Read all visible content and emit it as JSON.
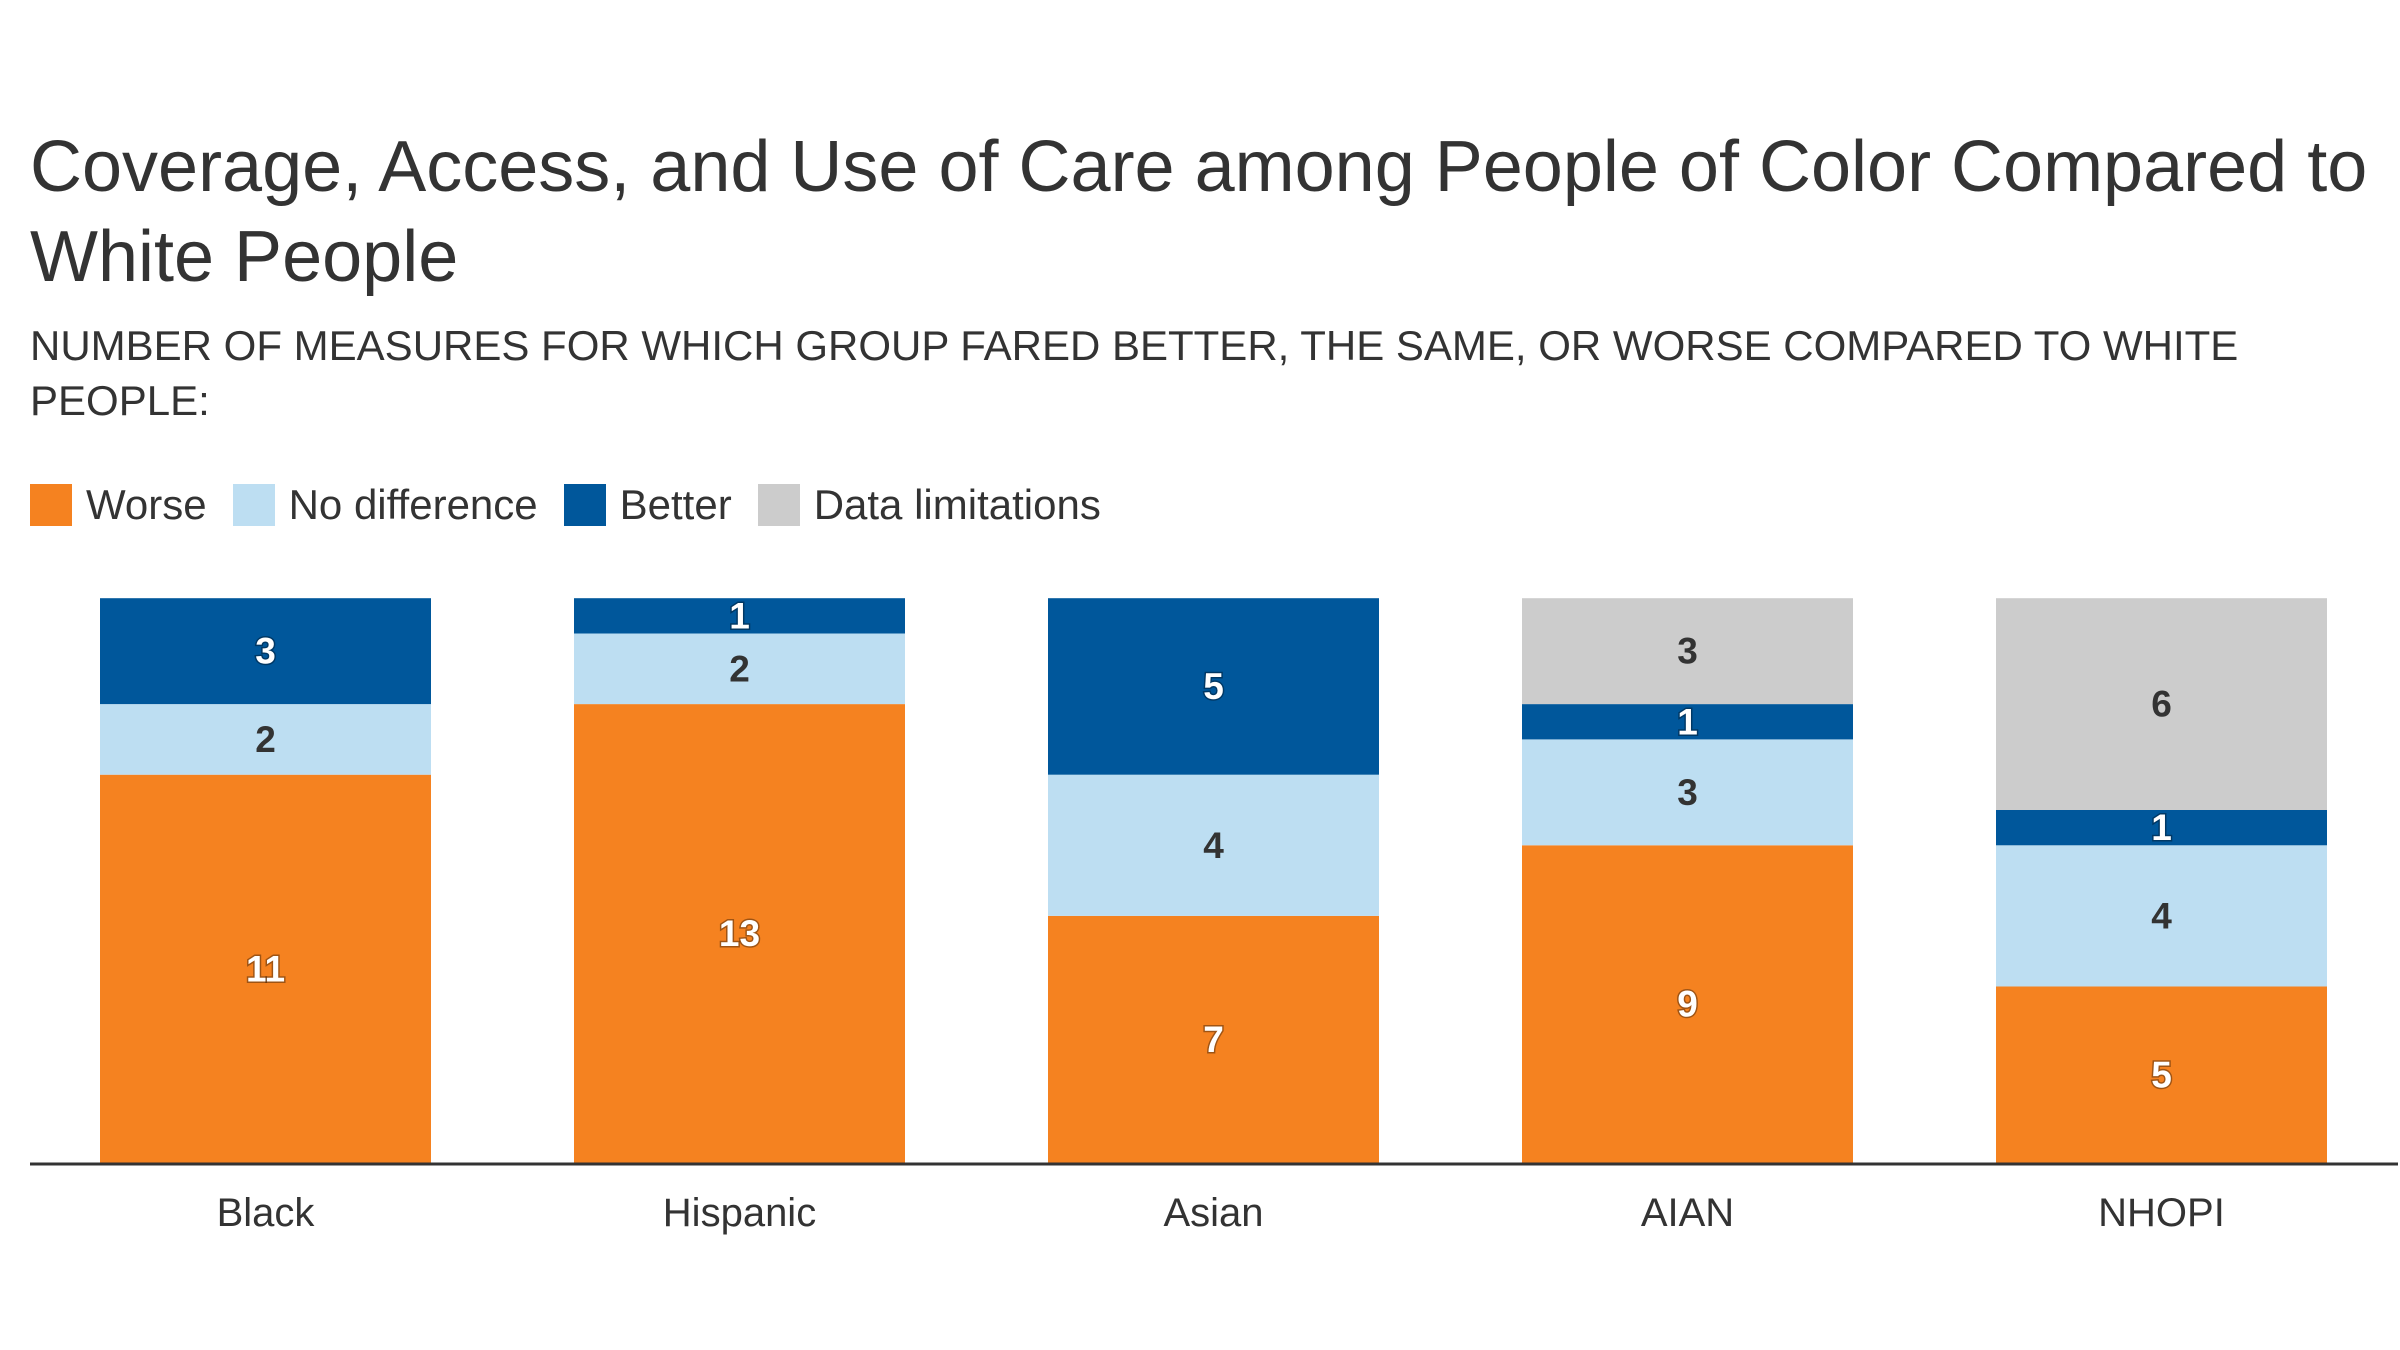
{
  "header": {
    "title": "Coverage, Access, and Use of Care among People of Color Compared to White People",
    "subtitle": "NUMBER OF MEASURES FOR WHICH GROUP FARED BETTER, THE SAME, OR WORSE COMPARED TO WHITE PEOPLE:"
  },
  "chart_data": {
    "type": "bar",
    "stacked": true,
    "title": "Coverage, Access, and Use of Care among People of Color Compared to White People",
    "subtitle": "NUMBER OF MEASURES FOR WHICH GROUP FARED BETTER, THE SAME, OR WORSE COMPARED TO WHITE PEOPLE:",
    "xlabel": "",
    "ylabel": "",
    "ylim": [
      0,
      16
    ],
    "grid": false,
    "legend_position": "top-left",
    "categories": [
      "Black",
      "Hispanic",
      "Asian",
      "AIAN",
      "NHOPI"
    ],
    "series": [
      {
        "name": "Worse",
        "color": "#f58220",
        "values": [
          11,
          13,
          7,
          9,
          5
        ]
      },
      {
        "name": "No difference",
        "color": "#bddef2",
        "values": [
          2,
          2,
          4,
          3,
          4
        ]
      },
      {
        "name": "Better",
        "color": "#00579b",
        "values": [
          3,
          1,
          5,
          1,
          1
        ]
      },
      {
        "name": "Data limitations",
        "color": "#cccccc",
        "values": [
          0,
          0,
          0,
          3,
          6
        ]
      }
    ]
  }
}
